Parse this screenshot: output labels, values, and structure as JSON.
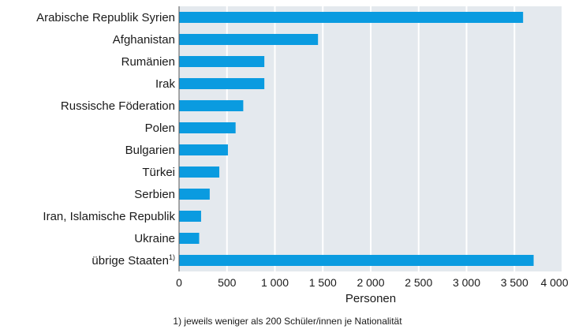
{
  "chart_data": {
    "type": "bar",
    "orientation": "horizontal",
    "categories": [
      "Arabische Republik Syrien",
      "Afghanistan",
      "Rumänien",
      "Irak",
      "Russische Föderation",
      "Polen",
      "Bulgarien",
      "Türkei",
      "Serbien",
      "Iran, Islamische Republik",
      "Ukraine",
      "übrige Staaten"
    ],
    "category_footnotes": [
      "",
      "",
      "",
      "",
      "",
      "",
      "",
      "",
      "",
      "",
      "",
      "1)"
    ],
    "values": [
      3590,
      1450,
      890,
      890,
      670,
      590,
      510,
      420,
      320,
      230,
      210,
      3700
    ],
    "xlabel": "Personen",
    "xlim": [
      0,
      4000
    ],
    "xticks": [
      0,
      500,
      1000,
      1500,
      2000,
      2500,
      3000,
      3500,
      4000
    ],
    "xtick_labels": [
      "0",
      "500",
      "1 000",
      "1 500",
      "2 000",
      "2 500",
      "3 000",
      "3 500",
      "4 000"
    ],
    "grid": "vertical",
    "bar_color": "#0a9be0",
    "plot_background": "#e4e9ee",
    "grid_color": "#ffffff"
  },
  "footnote": "1) jeweils weniger als 200 Schüler/innen je Nationalität"
}
